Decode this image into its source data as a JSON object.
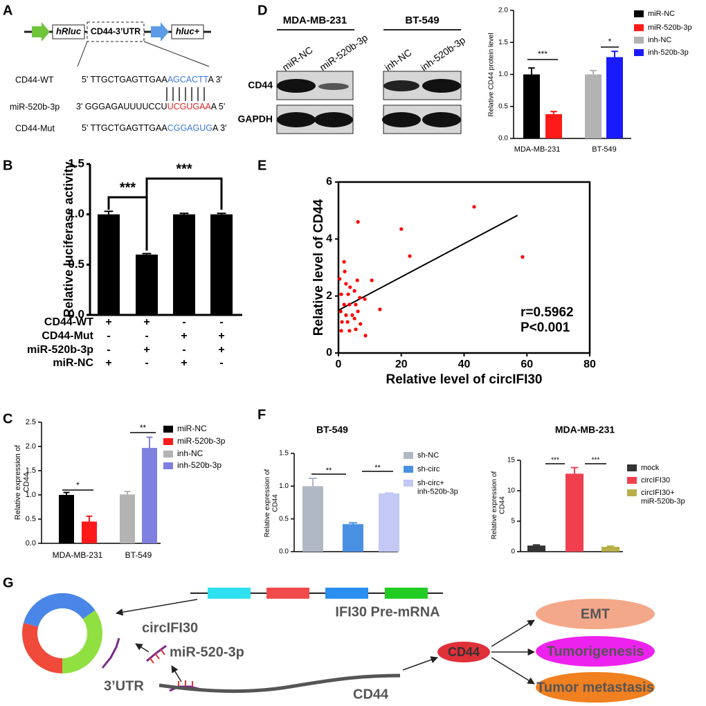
{
  "panel_labels": {
    "a": "A",
    "b": "B",
    "c": "C",
    "d": "D",
    "e": "E",
    "f": "F",
    "g": "G"
  },
  "panel_a": {
    "elements": [
      "hRluc",
      "CD44-3’UTR",
      "hluc+"
    ],
    "rows": [
      {
        "name": "CD44-WT",
        "seq": [
          "5' TTGCTGAGTTGAA",
          "AGCACTT",
          "A 3'"
        ]
      },
      {
        "name": "miR-520b-3p",
        "seq": [
          "3' GGGAGAUUUUCCU",
          "UCGUGAA",
          "A 5'"
        ]
      },
      {
        "name": "CD44-Mut",
        "seq": [
          "5' TTGCTGAGTTGAA",
          "CGGAGUG",
          "A 3'"
        ]
      }
    ]
  },
  "panel_d_blot": {
    "groups": [
      "MDA-MB-231",
      "BT-549"
    ],
    "lanes": [
      "miR-NC",
      "miR-520b-3p",
      "inh-NC",
      "inh-520b-3p"
    ],
    "proteins": [
      "CD44",
      "GAPDH"
    ]
  },
  "panel_g": {
    "circ": "circIFI30",
    "premrna": "IFI30 Pre-mRNA",
    "mirna": "miR-520-3p",
    "utr": "3’UTR",
    "mrna": "CD44",
    "node": "CD44",
    "outcomes": [
      "EMT",
      "Tumorigenesis",
      "Tumor metastasis"
    ]
  },
  "chart_data": [
    {
      "type": "bar",
      "ylabel": "Relative luciferase activity",
      "values": [
        1.0,
        0.6,
        1.0,
        1.0
      ],
      "errors": [
        0.03,
        0.01,
        0.01,
        0.01
      ],
      "color": "#000000",
      "ylim": [
        0,
        1.5
      ],
      "yticks": [
        {
          "value": 0,
          "label": "0.0"
        },
        {
          "value": 0.5,
          "label": "0.5"
        },
        {
          "value": 1,
          "label": "1.0"
        },
        {
          "value": 1.5,
          "label": "1.5"
        }
      ],
      "annotations": [
        "***",
        "***"
      ],
      "table": [
        {
          "name": "CD44-WT",
          "marks": [
            "+",
            "+",
            "-",
            "-"
          ]
        },
        {
          "name": "CD44-Mut",
          "marks": [
            "-",
            "-",
            "+",
            "+"
          ]
        },
        {
          "name": "miR-520b-3p",
          "marks": [
            "-",
            "+",
            "-",
            "+"
          ]
        },
        {
          "name": "miR-NC",
          "marks": [
            "+",
            "-",
            "+",
            "-"
          ]
        }
      ]
    },
    {
      "type": "bar",
      "ylabel": "Relative expression of\nCD44",
      "categories": [
        "MDA-MB-231",
        "BT-549"
      ],
      "series": [
        {
          "name": "miR-NC",
          "color": "#000000",
          "values": [
            1.0,
            null
          ],
          "errors": [
            0.05,
            null
          ]
        },
        {
          "name": "miR-520b-3p",
          "color": "#ff1a1a",
          "values": [
            0.45,
            null
          ],
          "errors": [
            0.11,
            null
          ]
        },
        {
          "name": "inh-NC",
          "color": "#b3b3b3",
          "values": [
            null,
            1.01
          ],
          "errors": [
            null,
            0.06
          ]
        },
        {
          "name": "inh-520b-3p",
          "color": "#8080e0",
          "values": [
            null,
            1.97
          ],
          "errors": [
            null,
            0.22
          ]
        }
      ],
      "ylim": [
        0,
        2.5
      ],
      "yticks": [
        {
          "value": 0,
          "label": "0.0"
        },
        {
          "value": 0.5,
          "label": "0.5"
        },
        {
          "value": 1,
          "label": "1.0"
        },
        {
          "value": 1.5,
          "label": "1.5"
        },
        {
          "value": 2,
          "label": "2.0"
        },
        {
          "value": 2.5,
          "label": "2.5"
        }
      ],
      "annotations": [
        "*",
        "**"
      ]
    },
    {
      "type": "bar",
      "ylabel": "Relative CD44 protein level",
      "categories": [
        "MDA-MB-231",
        "BT-549"
      ],
      "series": [
        {
          "name": "miR-NC",
          "color": "#000000",
          "values": [
            1.0,
            null
          ],
          "errors": [
            0.1,
            null
          ]
        },
        {
          "name": "miR-520b-3p",
          "color": "#ff1a1a",
          "values": [
            0.38,
            null
          ],
          "errors": [
            0.04,
            null
          ]
        },
        {
          "name": "inh-NC",
          "color": "#b3b3b3",
          "values": [
            null,
            1.0
          ],
          "errors": [
            null,
            0.06
          ]
        },
        {
          "name": "inh-520b-3p",
          "color": "#1a1aff",
          "values": [
            null,
            1.27
          ],
          "errors": [
            null,
            0.09
          ]
        }
      ],
      "ylim": [
        0,
        2
      ],
      "yticks": [
        {
          "value": 0,
          "label": "0.0"
        },
        {
          "value": 0.5,
          "label": "0.5"
        },
        {
          "value": 1,
          "label": "1.0"
        },
        {
          "value": 1.5,
          "label": "1.5"
        },
        {
          "value": 2,
          "label": "2.0"
        }
      ],
      "annotations": [
        "***",
        "*"
      ]
    },
    {
      "type": "scatter",
      "xlabel": "Relative level of circIFI30",
      "ylabel": "Relative level of CD44",
      "color": "#ff0000",
      "x": [
        43.2,
        20,
        6.2,
        22.7,
        58.6,
        1.8,
        2,
        6,
        10.6,
        0.4,
        2.4,
        3.7,
        0.9,
        3.1,
        5.1,
        6.8,
        1.8,
        3.5,
        5.5,
        8.4,
        13.2,
        0.7,
        2.4,
        4.4,
        6.2,
        1.1,
        2.9,
        5.1,
        7,
        0.9,
        3.5,
        5.5,
        8.6
      ],
      "y": [
        5.13,
        4.35,
        4.6,
        3.4,
        3.37,
        3.2,
        2.86,
        2.55,
        2.55,
        2.6,
        2.43,
        2.31,
        2.06,
        2.06,
        2.18,
        1.94,
        1.7,
        1.7,
        1.7,
        1.89,
        1.53,
        1.46,
        1.33,
        1.33,
        1.46,
        1.09,
        1.09,
        1.21,
        1.02,
        0.78,
        0.78,
        0.83,
        0.61
      ],
      "trendline": {
        "x": [
          0,
          57
        ],
        "y": [
          1.5,
          4.83
        ]
      },
      "xlim": [
        0,
        80
      ],
      "xticks": [
        0,
        20,
        40,
        60,
        80
      ],
      "ylim": [
        0,
        6
      ],
      "yticks": [
        0,
        2,
        4,
        6
      ],
      "annotations": [
        "r=0.5962",
        "P<0.001"
      ]
    },
    {
      "type": "bar",
      "title": "BT-549",
      "ylabel": "Relative expression of\nCD44",
      "series": [
        {
          "name": "sh-NC",
          "color": "#b0b8c4",
          "values": [
            1.0
          ],
          "errors": [
            0.12
          ]
        },
        {
          "name": "sh-circ",
          "color": "#4a90e2",
          "values": [
            0.42
          ],
          "errors": [
            0.02
          ]
        },
        {
          "name": "sh-circ+\ninh-520b-3p",
          "color": "#c4c8f4",
          "values": [
            0.89
          ],
          "errors": [
            0.005
          ]
        }
      ],
      "ylim": [
        0,
        1.5
      ],
      "yticks": [
        {
          "value": 0,
          "label": "0.0"
        },
        {
          "value": 0.5,
          "label": "0.5"
        },
        {
          "value": 1,
          "label": "1.0"
        },
        {
          "value": 1.5,
          "label": "1.5"
        }
      ],
      "annotations": [
        "**",
        "**"
      ]
    },
    {
      "type": "bar",
      "title": "MDA-MB-231",
      "ylabel": "Relative expression of\nCD44",
      "series": [
        {
          "name": "mock",
          "color": "#333333",
          "values": [
            1.0
          ],
          "errors": [
            0.1
          ]
        },
        {
          "name": "circIFI30",
          "color": "#f04050",
          "values": [
            12.8
          ],
          "errors": [
            1.0
          ]
        },
        {
          "name": "circIFI30+\nmiR-520b-3p",
          "color": "#b8b048",
          "values": [
            0.8
          ],
          "errors": [
            0.1
          ]
        }
      ],
      "ylim": [
        0,
        15
      ],
      "yticks": [
        0,
        5,
        10,
        15
      ],
      "annotations": [
        "***",
        "***"
      ]
    }
  ]
}
